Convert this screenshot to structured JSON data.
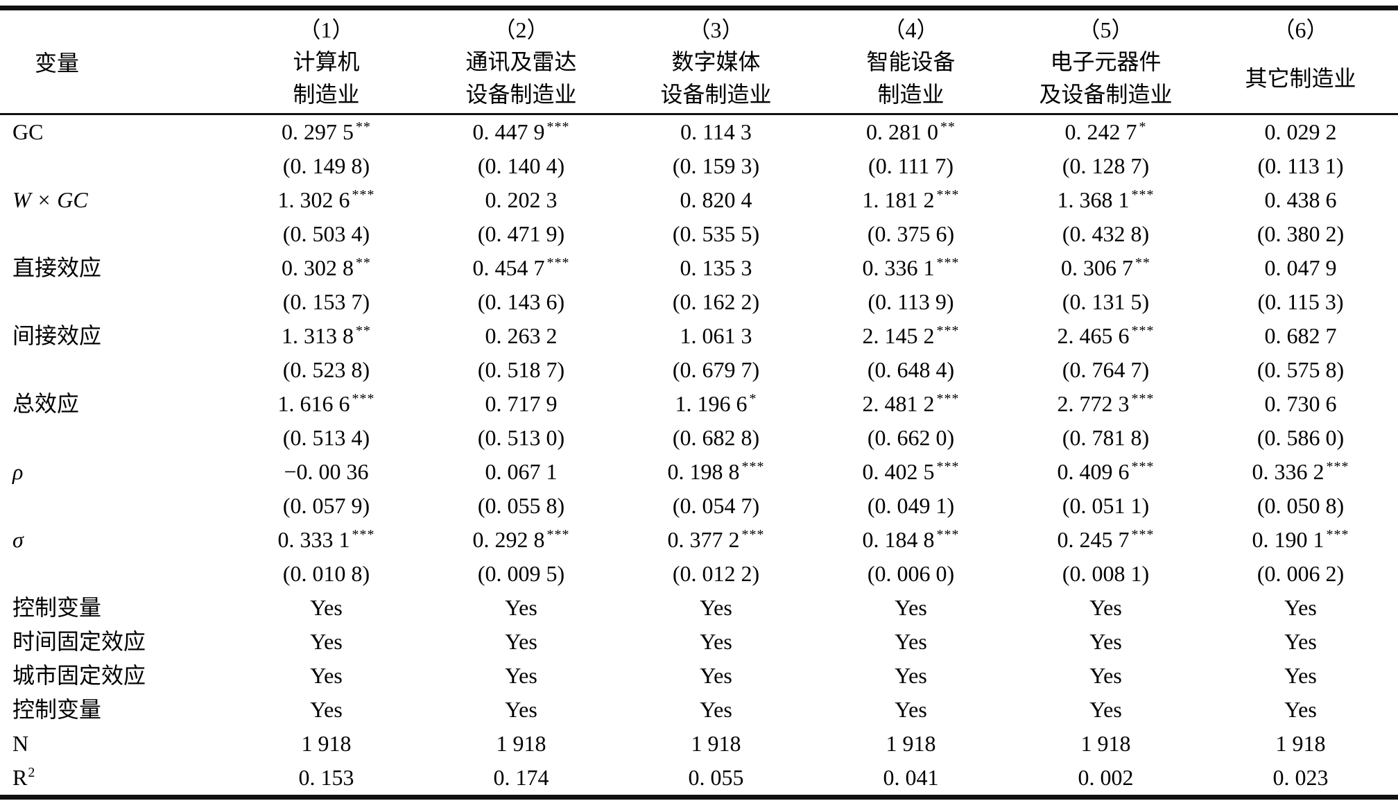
{
  "header": {
    "variable_label": "变量",
    "columns": [
      {
        "num": "（1）",
        "name_lines": [
          "计算机",
          "制造业"
        ]
      },
      {
        "num": "（2）",
        "name_lines": [
          "通讯及雷达",
          "设备制造业"
        ]
      },
      {
        "num": "（3）",
        "name_lines": [
          "数字媒体",
          "设备制造业"
        ]
      },
      {
        "num": "（4）",
        "name_lines": [
          "智能设备",
          "制造业"
        ]
      },
      {
        "num": "（5）",
        "name_lines": [
          "电子元器件",
          "及设备制造业"
        ]
      },
      {
        "num": "（6）",
        "name_lines": [
          "其它制造业"
        ]
      }
    ]
  },
  "coef_rows": [
    {
      "label": "GC",
      "italic": false,
      "values": [
        "0. 297 5",
        "0. 447 9",
        "0. 114 3",
        "0. 281 0",
        "0. 242 7",
        "0. 029 2"
      ],
      "stars": [
        "**",
        "***",
        "",
        "**",
        "*",
        ""
      ],
      "se": [
        "(0. 149 8)",
        "(0. 140 4)",
        "(0. 159 3)",
        "(0. 111 7)",
        "(0. 128 7)",
        "(0. 113 1)"
      ]
    },
    {
      "label": "W × GC",
      "italic": true,
      "values": [
        "1. 302 6",
        "0. 202 3",
        "0. 820 4",
        "1. 181 2",
        "1. 368 1",
        "0. 438 6"
      ],
      "stars": [
        "***",
        "",
        "",
        "***",
        "***",
        ""
      ],
      "se": [
        "(0. 503 4)",
        "(0. 471 9)",
        "(0. 535 5)",
        "(0. 375 6)",
        "(0. 432 8)",
        "(0. 380 2)"
      ]
    },
    {
      "label": "直接效应",
      "italic": false,
      "values": [
        "0. 302 8",
        "0. 454 7",
        "0. 135 3",
        "0. 336 1",
        "0. 306 7",
        "0. 047 9"
      ],
      "stars": [
        "**",
        "***",
        "",
        "***",
        "**",
        ""
      ],
      "se": [
        "(0. 153 7)",
        "(0. 143 6)",
        "(0. 162 2)",
        "(0. 113 9)",
        "(0. 131 5)",
        "(0. 115 3)"
      ]
    },
    {
      "label": "间接效应",
      "italic": false,
      "values": [
        "1. 313 8",
        "0. 263 2",
        "1. 061 3",
        "2. 145 2",
        "2. 465 6",
        "0. 682 7"
      ],
      "stars": [
        "**",
        "",
        "",
        "***",
        "***",
        ""
      ],
      "se": [
        "(0. 523 8)",
        "(0. 518 7)",
        "(0. 679 7)",
        "(0. 648 4)",
        "(0. 764 7)",
        "(0. 575 8)"
      ]
    },
    {
      "label": "总效应",
      "italic": false,
      "values": [
        "1. 616 6",
        "0. 717 9",
        "1. 196 6",
        "2. 481 2",
        "2. 772 3",
        "0. 730 6"
      ],
      "stars": [
        "***",
        "",
        "*",
        "***",
        "***",
        ""
      ],
      "se": [
        "(0. 513 4)",
        "(0. 513 0)",
        "(0. 682 8)",
        "(0. 662 0)",
        "(0. 781 8)",
        "(0. 586 0)"
      ]
    },
    {
      "label": "ρ",
      "italic": true,
      "values": [
        "−0. 00 36",
        "0. 067 1",
        "0. 198 8",
        "0. 402 5",
        "0. 409 6",
        "0. 336 2"
      ],
      "stars": [
        "",
        "",
        "***",
        "***",
        "***",
        "***"
      ],
      "se": [
        "(0. 057 9)",
        "(0. 055 8)",
        "(0. 054 7)",
        "(0. 049 1)",
        "(0. 051 1)",
        "(0. 050 8)"
      ]
    },
    {
      "label": "σ",
      "italic": true,
      "values": [
        "0. 333 1",
        "0. 292 8",
        "0. 377 2",
        "0. 184 8",
        "0. 245 7",
        "0. 190 1"
      ],
      "stars": [
        "***",
        "***",
        "***",
        "***",
        "***",
        "***"
      ],
      "se": [
        "(0. 010 8)",
        "(0. 009 5)",
        "(0. 012 2)",
        "(0. 006 0)",
        "(0. 008 1)",
        "(0. 006 2)"
      ]
    }
  ],
  "info_rows": [
    {
      "label": "控制变量",
      "label_sup": "",
      "values": [
        "Yes",
        "Yes",
        "Yes",
        "Yes",
        "Yes",
        "Yes"
      ]
    },
    {
      "label": "时间固定效应",
      "label_sup": "",
      "values": [
        "Yes",
        "Yes",
        "Yes",
        "Yes",
        "Yes",
        "Yes"
      ]
    },
    {
      "label": "城市固定效应",
      "label_sup": "",
      "values": [
        "Yes",
        "Yes",
        "Yes",
        "Yes",
        "Yes",
        "Yes"
      ]
    },
    {
      "label": "控制变量",
      "label_sup": "",
      "values": [
        "Yes",
        "Yes",
        "Yes",
        "Yes",
        "Yes",
        "Yes"
      ]
    },
    {
      "label": "N",
      "label_sup": "",
      "values": [
        "1 918",
        "1 918",
        "1 918",
        "1 918",
        "1 918",
        "1 918"
      ]
    },
    {
      "label": "R",
      "label_sup": "2",
      "values": [
        "0. 153",
        "0. 174",
        "0. 055",
        "0. 041",
        "0. 002",
        "0. 023"
      ]
    }
  ]
}
